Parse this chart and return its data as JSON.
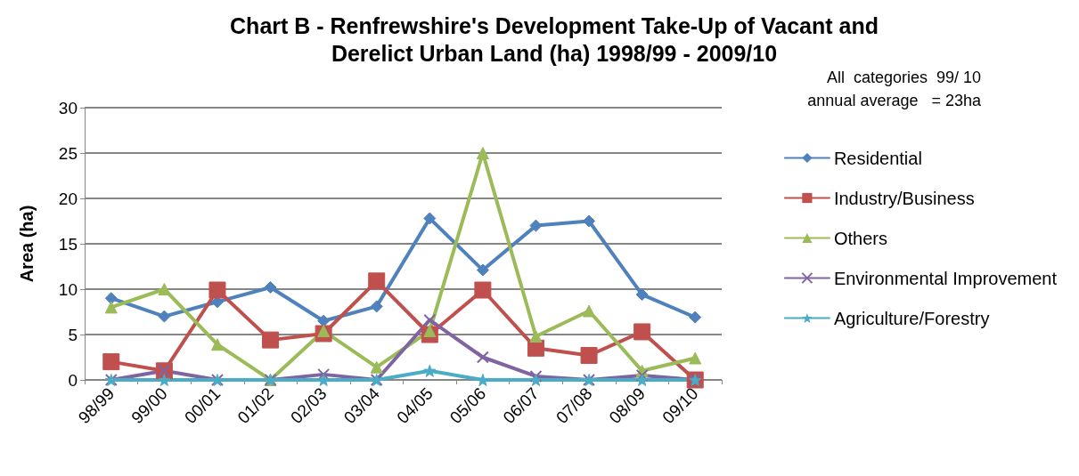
{
  "chart_data": {
    "type": "line",
    "title": "Chart B - Renfrewshire's Development Take-Up of Vacant and\nDerelict Urban Land (ha) 1998/99 - 2009/10",
    "ylabel": "Area (ha)",
    "annotations": [
      "All  categories  99/ 10",
      "annual average   = 23ha"
    ],
    "categories": [
      "98/99",
      "99/00",
      "00/01",
      "01/02",
      "02/03",
      "03/04",
      "04/05",
      "05/06",
      "06/07",
      "07/08",
      "08/09",
      "09/10"
    ],
    "series": [
      {
        "name": "Residential",
        "color": "#4f81bd",
        "marker": "diamond",
        "values": [
          9,
          7,
          8.6,
          10.2,
          6.5,
          8.1,
          17.8,
          12.1,
          17,
          17.5,
          9.4,
          6.9
        ]
      },
      {
        "name": "Industry/Business",
        "color": "#c0504d",
        "marker": "square",
        "values": [
          2,
          1,
          9.9,
          4.4,
          5.1,
          10.9,
          5,
          9.9,
          3.5,
          2.7,
          5.3,
          0
        ]
      },
      {
        "name": "Others",
        "color": "#9bbb59",
        "marker": "triangle",
        "values": [
          8,
          10,
          3.9,
          0,
          5.4,
          1.4,
          5.4,
          25,
          4.8,
          7.6,
          1,
          2.4
        ]
      },
      {
        "name": "Environmental Improvement",
        "color": "#8064a2",
        "marker": "cross",
        "values": [
          0,
          1,
          0,
          0,
          0.6,
          0,
          6.6,
          2.5,
          0.4,
          0,
          0.5,
          0
        ]
      },
      {
        "name": "Agriculture/Forestry",
        "color": "#4bacc6",
        "marker": "star",
        "values": [
          0,
          0,
          0,
          0,
          0,
          0,
          1,
          0,
          0,
          0,
          0,
          0
        ]
      }
    ],
    "ylim": [
      0,
      30
    ],
    "yticks": [
      0,
      5,
      10,
      15,
      20,
      25,
      30
    ],
    "grid": "y",
    "legend": "right",
    "line_style": "solid"
  }
}
